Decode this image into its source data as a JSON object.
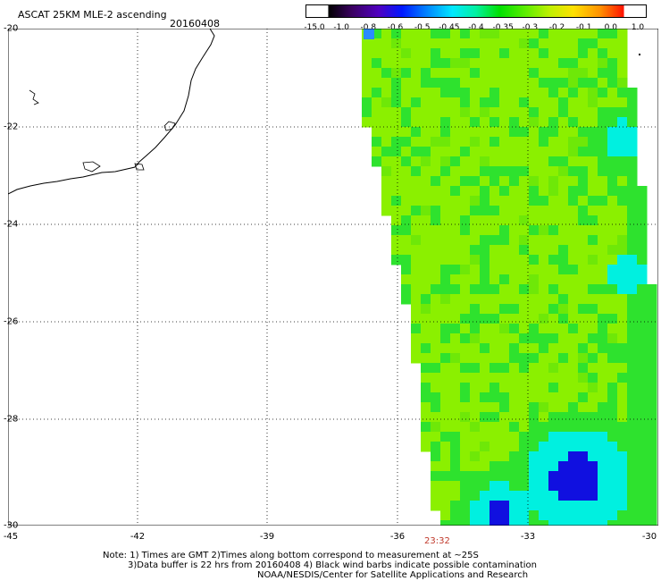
{
  "header": {
    "title": "ASCAT 25KM MLE-2 ascending",
    "date": "20160408"
  },
  "colorbar": {
    "labels": [
      "-15.0",
      "-1.0",
      "-0.8",
      "-0.6",
      "-0.5",
      "-0.45",
      "-0.4",
      "-0.35",
      "-0.3",
      "-0.2",
      "-0.1",
      "0.0",
      "1.0"
    ]
  },
  "map": {
    "latitude_labels": [
      "-20",
      "-22",
      "-24",
      "-26",
      "-28",
      "-30"
    ],
    "longitude_labels": [
      "-45",
      "-42",
      "-39",
      "-36",
      "-33",
      "-30"
    ],
    "time_label": "23:32",
    "colors": {
      "background": "#ffffff",
      "coast": "#000000",
      "swath_dominant": "#8bf000",
      "swath_secondary": "#2ee22e",
      "swath_cyan": "#00f0e0",
      "swath_low": "#1010e0",
      "grid": "#000000"
    }
  },
  "footer": {
    "line1": "Note: 1) Times are GMT 2)Times along bottom correspond to measurement at ~25S",
    "line2": "3)Data buffer is 22 hrs from 20160408 4) Black wind barbs indicate possible contamination",
    "line3": "NOAA/NESDIS/Center for Satellite Applications and Research"
  }
}
